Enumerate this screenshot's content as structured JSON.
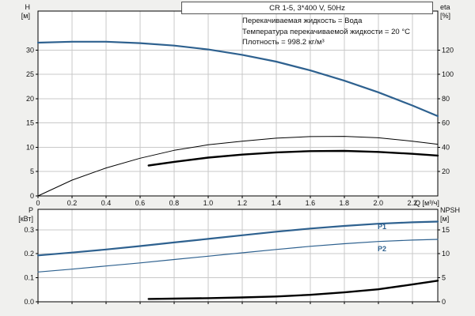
{
  "title_box": "CR 1-5, 3*400 V, 50Hz",
  "annotations": [
    "Перекачиваемая жидкость = Вода",
    "Температура перекачиваемой жидкости = 20 °C",
    "Плотность = 998.2 кг/м³"
  ],
  "axis_labels": {
    "top_left": [
      "H",
      "[м]"
    ],
    "top_right": [
      "eta",
      "[%]"
    ],
    "x": "Q [м³/ч]",
    "bottom_left": [
      "P",
      "[кВт]"
    ],
    "bottom_right": [
      "NPSH",
      "[м]"
    ]
  },
  "colors": {
    "curve_blue": "#2e618f",
    "curve_black": "#000000",
    "grid": "#c9c9c9",
    "page_bg": "#f0f0ee",
    "plot_bg": "#ffffff"
  },
  "chart_data": [
    {
      "type": "line",
      "name": "head-efficiency-panel",
      "x_axis": {
        "lim": [
          0,
          2.35
        ],
        "ticks": [
          0,
          0.2,
          0.4,
          0.6,
          0.8,
          1.0,
          1.2,
          1.4,
          1.6,
          1.8,
          2.0,
          2.2
        ],
        "tick_labels": [
          "0",
          "0.2",
          "0.4",
          "0.6",
          "0.8",
          "1.0",
          "1.2",
          "1.4",
          "1.6",
          "1.8",
          "2.0",
          "2.2"
        ],
        "show_labels": true,
        "label": "Q [м³/ч]"
      },
      "left_axis": {
        "label": "H [м]",
        "lim": [
          0,
          38
        ],
        "ticks": [
          0,
          5,
          10,
          15,
          20,
          25,
          30
        ],
        "tick_labels": [
          "0",
          "5",
          "10",
          "15",
          "20",
          "25",
          "30"
        ]
      },
      "right_axis": {
        "label": "eta [%]",
        "lim": [
          0,
          152
        ],
        "ticks": [
          20,
          40,
          60,
          80,
          100,
          120
        ],
        "tick_labels": [
          "20",
          "40",
          "60",
          "80",
          "100",
          "120"
        ]
      },
      "series": [
        {
          "name": "H-Q-curve",
          "axis": "left",
          "color": "blue",
          "width": 2.2,
          "points": [
            [
              0,
              31.5
            ],
            [
              0.2,
              31.7
            ],
            [
              0.4,
              31.7
            ],
            [
              0.6,
              31.4
            ],
            [
              0.8,
              30.9
            ],
            [
              1.0,
              30.1
            ],
            [
              1.2,
              29.0
            ],
            [
              1.4,
              27.6
            ],
            [
              1.6,
              25.8
            ],
            [
              1.8,
              23.7
            ],
            [
              2.0,
              21.3
            ],
            [
              2.2,
              18.6
            ],
            [
              2.35,
              16.4
            ]
          ]
        },
        {
          "name": "eta-pump-curve",
          "axis": "right",
          "color": "black",
          "width": 1,
          "points": [
            [
              0,
              0
            ],
            [
              0.2,
              13
            ],
            [
              0.4,
              23
            ],
            [
              0.6,
              31
            ],
            [
              0.8,
              37.5
            ],
            [
              1.0,
              42
            ],
            [
              1.2,
              45
            ],
            [
              1.4,
              47.5
            ],
            [
              1.6,
              48.8
            ],
            [
              1.8,
              49
            ],
            [
              2.0,
              47.8
            ],
            [
              2.2,
              45
            ],
            [
              2.35,
              42.5
            ]
          ]
        },
        {
          "name": "eta-total-curve",
          "axis": "right",
          "color": "black",
          "width": 2.4,
          "points": [
            [
              0.65,
              25
            ],
            [
              0.8,
              28
            ],
            [
              1.0,
              31.5
            ],
            [
              1.2,
              34
            ],
            [
              1.4,
              35.8
            ],
            [
              1.6,
              36.8
            ],
            [
              1.8,
              37
            ],
            [
              2.0,
              36.2
            ],
            [
              2.2,
              34.6
            ],
            [
              2.35,
              33.2
            ]
          ]
        }
      ]
    },
    {
      "type": "line",
      "name": "power-npsh-panel",
      "x_axis": {
        "lim": [
          0,
          2.35
        ],
        "ticks": [
          0,
          0.2,
          0.4,
          0.6,
          0.8,
          1.0,
          1.2,
          1.4,
          1.6,
          1.8,
          2.0,
          2.2
        ],
        "tick_labels": [
          "0",
          "0.2",
          "0.4",
          "0.6",
          "0.8",
          "1.0",
          "1.2",
          "1.4",
          "1.6",
          "1.8",
          "2.0",
          "2.2"
        ],
        "show_labels": false,
        "label": ""
      },
      "left_axis": {
        "label": "P [кВт]",
        "lim": [
          0,
          0.385
        ],
        "ticks": [
          0,
          0.1,
          0.2,
          0.3
        ],
        "tick_labels": [
          "0.0",
          "0.1",
          "0.2",
          "0.3"
        ]
      },
      "right_axis": {
        "label": "NPSH [м]",
        "lim": [
          0,
          19.25
        ],
        "ticks": [
          0,
          5,
          10,
          15
        ],
        "tick_labels": [
          "0",
          "5",
          "10",
          "15"
        ]
      },
      "series": [
        {
          "name": "P1-curve",
          "label": "P1",
          "axis": "left",
          "color": "blue",
          "width": 2.2,
          "points": [
            [
              0,
              0.193
            ],
            [
              0.2,
              0.205
            ],
            [
              0.4,
              0.218
            ],
            [
              0.6,
              0.232
            ],
            [
              0.8,
              0.247
            ],
            [
              1.0,
              0.262
            ],
            [
              1.2,
              0.277
            ],
            [
              1.4,
              0.292
            ],
            [
              1.6,
              0.305
            ],
            [
              1.8,
              0.316
            ],
            [
              2.0,
              0.325
            ],
            [
              2.2,
              0.331
            ],
            [
              2.35,
              0.334
            ]
          ]
        },
        {
          "name": "P2-curve",
          "label": "P2",
          "axis": "left",
          "color": "blue",
          "width": 1.2,
          "points": [
            [
              0,
              0.124
            ],
            [
              0.2,
              0.136
            ],
            [
              0.4,
              0.149
            ],
            [
              0.6,
              0.162
            ],
            [
              0.8,
              0.176
            ],
            [
              1.0,
              0.19
            ],
            [
              1.2,
              0.204
            ],
            [
              1.4,
              0.218
            ],
            [
              1.6,
              0.231
            ],
            [
              1.8,
              0.242
            ],
            [
              2.0,
              0.251
            ],
            [
              2.2,
              0.257
            ],
            [
              2.35,
              0.26
            ]
          ]
        },
        {
          "name": "NPSH-curve",
          "axis": "right",
          "color": "black",
          "width": 2.4,
          "points": [
            [
              0.65,
              0.6
            ],
            [
              0.8,
              0.65
            ],
            [
              1.0,
              0.75
            ],
            [
              1.2,
              0.9
            ],
            [
              1.4,
              1.1
            ],
            [
              1.6,
              1.45
            ],
            [
              1.8,
              1.95
            ],
            [
              2.0,
              2.6
            ],
            [
              2.2,
              3.6
            ],
            [
              2.35,
              4.4
            ]
          ]
        }
      ]
    }
  ]
}
